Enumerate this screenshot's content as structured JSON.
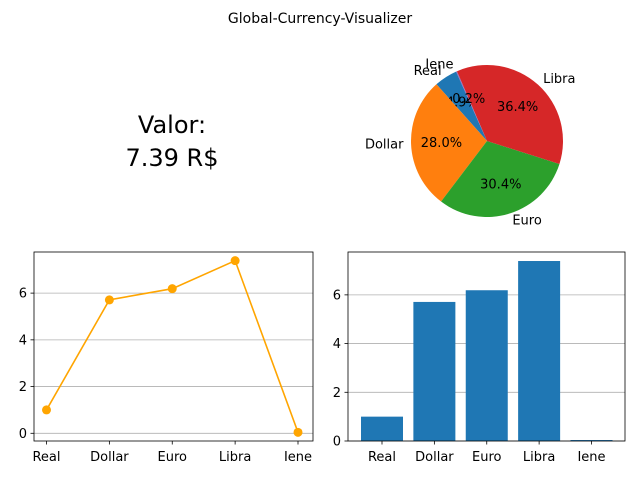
{
  "figure_title": "Global-Currency-Visualizer",
  "value_panel": {
    "label": "Valor:",
    "value": "7.39 R$"
  },
  "colors": {
    "line": "#ffa500",
    "bar": "#1f77b4",
    "pie": [
      "#1f77b4",
      "#ff7f0e",
      "#2ca02c",
      "#d62728",
      "#9467bd"
    ],
    "grid": "#b0b0b0"
  },
  "chart_data": [
    {
      "type": "pie",
      "categories": [
        "Real",
        "Dollar",
        "Euro",
        "Libra",
        "Iene"
      ],
      "values": [
        1.0,
        5.71,
        6.19,
        7.39,
        0.04
      ],
      "pct_labels": [
        "4.9%",
        "28.0%",
        "30.4%",
        "36.4%",
        "0.2%"
      ],
      "title": ""
    },
    {
      "type": "line",
      "categories": [
        "Real",
        "Dollar",
        "Euro",
        "Libra",
        "Iene"
      ],
      "values": [
        1.0,
        5.71,
        6.19,
        7.39,
        0.04
      ],
      "ylim": [
        -0.33,
        7.76
      ],
      "yticks": [
        0,
        2,
        4,
        6
      ],
      "grid": "y",
      "marker": "circle",
      "title": "",
      "xlabel": "",
      "ylabel": ""
    },
    {
      "type": "bar",
      "categories": [
        "Real",
        "Dollar",
        "Euro",
        "Libra",
        "Iene"
      ],
      "values": [
        1.0,
        5.71,
        6.19,
        7.39,
        0.04
      ],
      "ylim": [
        0,
        7.76
      ],
      "yticks": [
        0,
        2,
        4,
        6
      ],
      "grid": "y",
      "title": "",
      "xlabel": "",
      "ylabel": ""
    }
  ]
}
